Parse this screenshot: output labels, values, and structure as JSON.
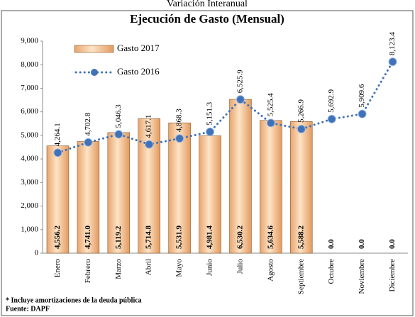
{
  "chart_data": {
    "type": "bar",
    "supertitle": "Variación Interanual",
    "title": "Ejecución de Gasto (Mensual)",
    "categories": [
      "Enero",
      "Febrero",
      "Marzo",
      "Abril",
      "Mayo",
      "Junio",
      "Julio",
      "Agosto",
      "Septiembre",
      "Octubre",
      "Noviembre",
      "Diciembre"
    ],
    "series": [
      {
        "name": "Gasto 2017",
        "type": "bar",
        "color": "#f4c08e",
        "values": [
          4556.2,
          4741.0,
          5119.2,
          5714.8,
          5531.9,
          4981.4,
          6530.2,
          5634.6,
          5588.2,
          0,
          0,
          0
        ],
        "value_labels": [
          "4,556.2",
          "4,741.0",
          "5,119.2",
          "5,714.8",
          "5,531.9",
          "4,981.4",
          "6,530.2",
          "5,634.6",
          "5,588.2",
          "0.0",
          "0.0",
          "0.0"
        ]
      },
      {
        "name": "Gasto 2016",
        "type": "line",
        "color": "#3f72b8",
        "values": [
          4264.1,
          4702.8,
          5046.3,
          4617.1,
          4868.3,
          5151.3,
          6525.9,
          5525.4,
          5266.9,
          5692.9,
          5909.6,
          8123.4
        ],
        "value_labels": [
          "4,264.1",
          "4,702.8",
          "5,046.3",
          "4,617.1",
          "4,868.3",
          "5,151.3",
          "6,525.9",
          "5,525.4",
          "5,266.9",
          "5,692.9",
          "5,909.6",
          "8,123.4"
        ]
      }
    ],
    "ylim": [
      0,
      9000
    ],
    "yticks": [
      0,
      {
        "value": 1000,
        "label": "1,000"
      },
      {
        "value": 2000,
        "label": "2,000"
      },
      {
        "value": 3000,
        "label": "3,000"
      },
      {
        "value": 4000,
        "label": "4,000"
      },
      {
        "value": 5000,
        "label": "5,000"
      },
      {
        "value": 6000,
        "label": "6,000"
      },
      {
        "value": 7000,
        "label": "7,000"
      },
      {
        "value": 8000,
        "label": "8,000"
      },
      {
        "value": 9000,
        "label": "9,000"
      }
    ],
    "notes": [
      "* Incluye amortizaciones de la deuda pública",
      "Fuente: DAPF"
    ]
  }
}
